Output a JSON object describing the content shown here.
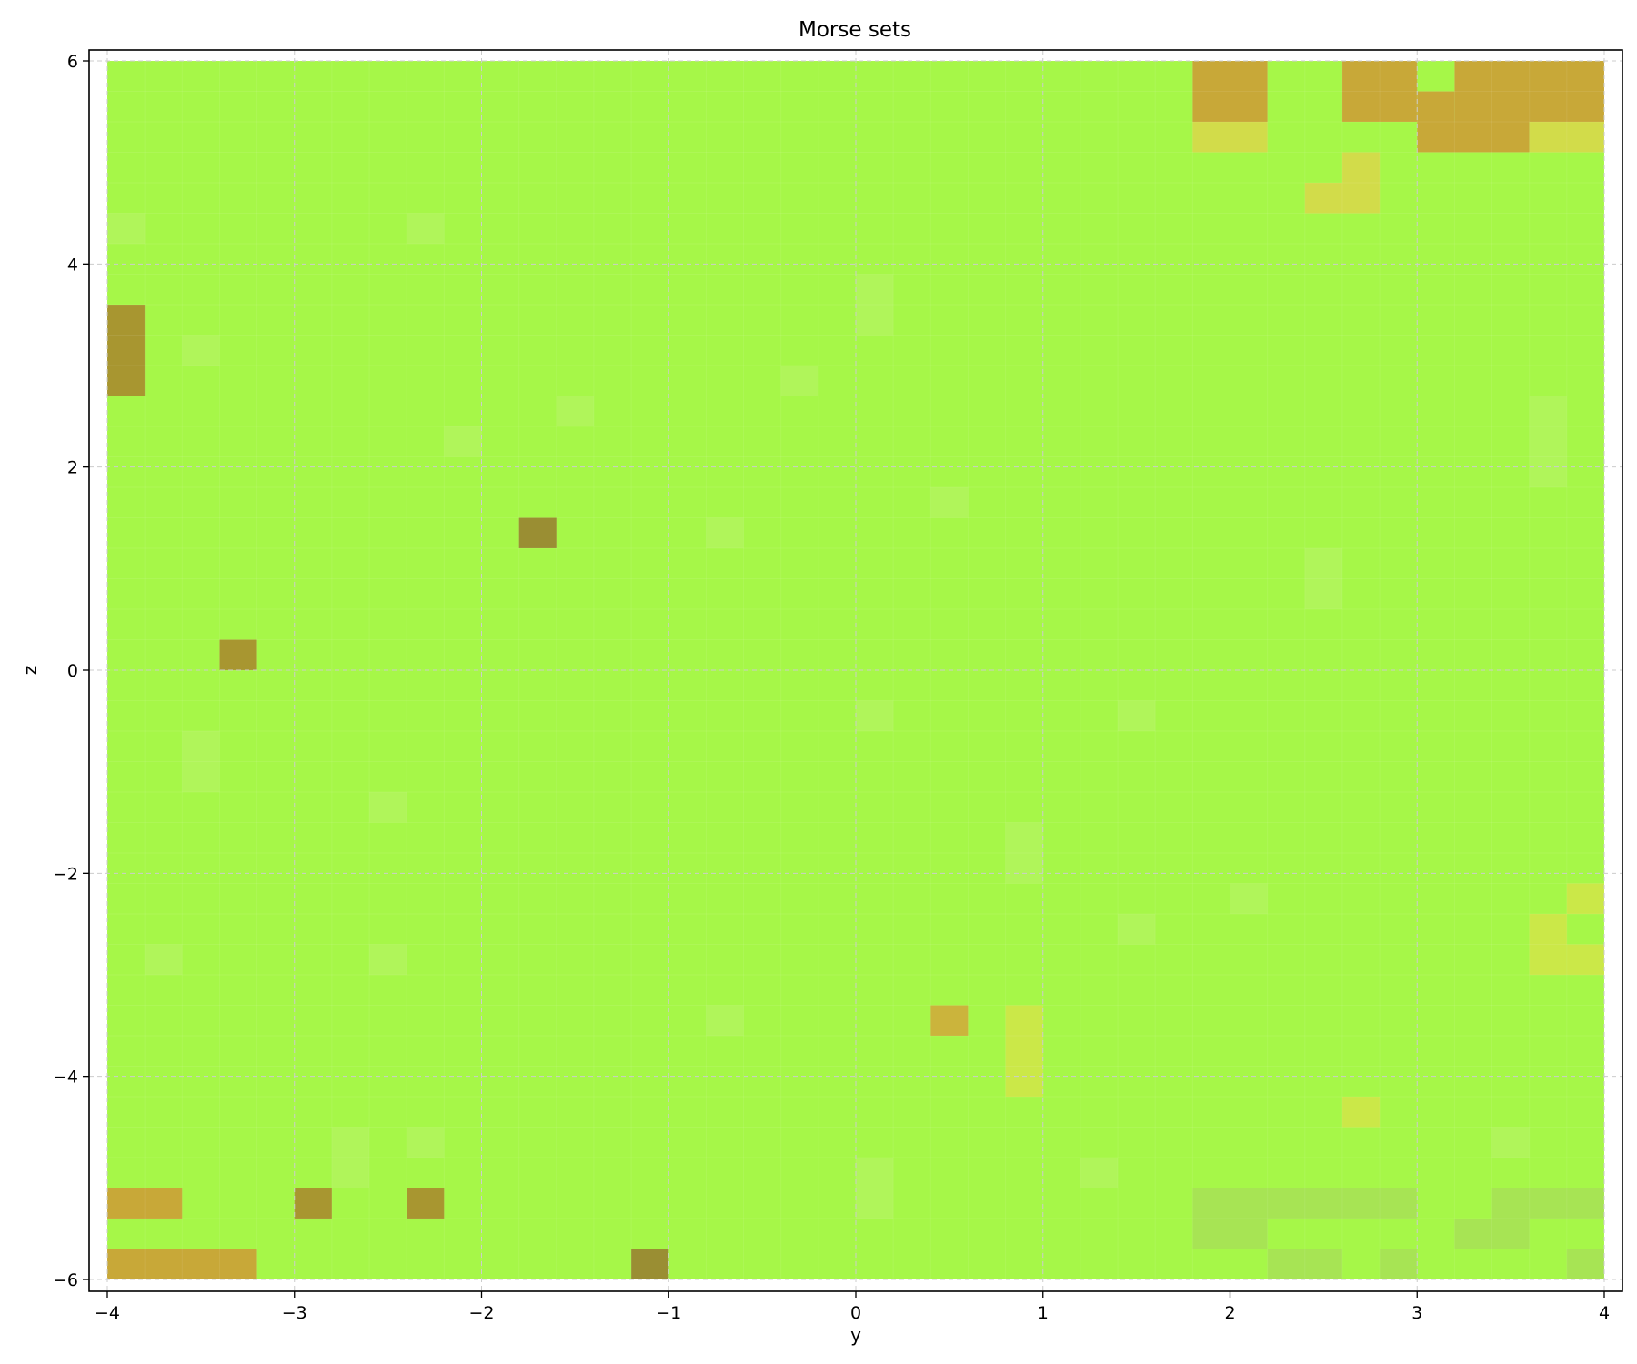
{
  "chart_data": {
    "type": "heatmap",
    "title": "Morse sets",
    "xlabel": "y",
    "ylabel": "z",
    "xlim": [
      -4,
      4
    ],
    "ylim": [
      -6,
      6
    ],
    "grid": true,
    "x_ticks": [
      -4,
      -3,
      -2,
      -1,
      0,
      1,
      2,
      3,
      4
    ],
    "y_ticks": [
      -6,
      -4,
      -2,
      0,
      2,
      4,
      6
    ],
    "x_tick_labels": [
      "−4",
      "−3",
      "−2",
      "−1",
      "0",
      "1",
      "2",
      "3",
      "4"
    ],
    "y_tick_labels": [
      "−6",
      "−4",
      "−2",
      "0",
      "2",
      "4",
      "6"
    ],
    "cell_width": 0.2,
    "cell_height": 0.3,
    "background_color": "#a6f748",
    "colors": {
      "green": "#a6f748",
      "light_green": "#b0f55a",
      "dark_yellow": "#c8a838",
      "mustard": "#cbb43c",
      "olive": "#a89630",
      "dark_olive": "#9a8e33",
      "yellow": "#d2dc4a",
      "yellow_green": "#cbe848",
      "muted_green": "#a7e454"
    },
    "cells": [
      {
        "y": [
          1.8,
          2.2
        ],
        "z": [
          5.4,
          6.0
        ],
        "color": "dark_yellow"
      },
      {
        "y": [
          1.8,
          2.2
        ],
        "z": [
          5.1,
          5.4
        ],
        "color": "yellow"
      },
      {
        "y": [
          2.6,
          3.0
        ],
        "z": [
          5.4,
          6.0
        ],
        "color": "dark_yellow"
      },
      {
        "y": [
          3.2,
          4.0
        ],
        "z": [
          5.4,
          6.0
        ],
        "color": "dark_yellow"
      },
      {
        "y": [
          3.0,
          3.2
        ],
        "z": [
          5.4,
          5.7
        ],
        "color": "dark_yellow"
      },
      {
        "y": [
          3.0,
          3.6
        ],
        "z": [
          5.1,
          5.4
        ],
        "color": "dark_yellow"
      },
      {
        "y": [
          3.6,
          4.0
        ],
        "z": [
          5.1,
          5.4
        ],
        "color": "yellow"
      },
      {
        "y": [
          2.6,
          2.8
        ],
        "z": [
          4.8,
          5.1
        ],
        "color": "yellow"
      },
      {
        "y": [
          2.4,
          2.8
        ],
        "z": [
          4.5,
          4.8
        ],
        "color": "yellow"
      },
      {
        "y": [
          -4.0,
          -3.8
        ],
        "z": [
          2.7,
          3.6
        ],
        "color": "olive"
      },
      {
        "y": [
          -1.8,
          -1.6
        ],
        "z": [
          1.2,
          1.5
        ],
        "color": "dark_olive"
      },
      {
        "y": [
          -3.4,
          -3.2
        ],
        "z": [
          0.0,
          0.3
        ],
        "color": "olive"
      },
      {
        "y": [
          0.4,
          0.6
        ],
        "z": [
          -3.6,
          -3.3
        ],
        "color": "mustard"
      },
      {
        "y": [
          0.8,
          1.0
        ],
        "z": [
          -4.2,
          -3.3
        ],
        "color": "yellow_green"
      },
      {
        "y": [
          3.8,
          4.0
        ],
        "z": [
          -2.4,
          -2.1
        ],
        "color": "yellow_green"
      },
      {
        "y": [
          3.6,
          3.8
        ],
        "z": [
          -3.0,
          -2.4
        ],
        "color": "yellow_green"
      },
      {
        "y": [
          3.8,
          4.0
        ],
        "z": [
          -3.0,
          -2.7
        ],
        "color": "yellow_green"
      },
      {
        "y": [
          2.6,
          2.8
        ],
        "z": [
          -4.5,
          -4.2
        ],
        "color": "yellow_green"
      },
      {
        "y": [
          -4.0,
          -3.6
        ],
        "z": [
          -5.4,
          -5.1
        ],
        "color": "dark_yellow"
      },
      {
        "y": [
          -3.0,
          -2.8
        ],
        "z": [
          -5.4,
          -5.1
        ],
        "color": "olive"
      },
      {
        "y": [
          -2.4,
          -2.2
        ],
        "z": [
          -5.4,
          -5.1
        ],
        "color": "olive"
      },
      {
        "y": [
          -4.0,
          -3.2
        ],
        "z": [
          -6.0,
          -5.7
        ],
        "color": "dark_yellow"
      },
      {
        "y": [
          -1.2,
          -1.0
        ],
        "z": [
          -6.0,
          -5.7
        ],
        "color": "dark_olive"
      },
      {
        "y": [
          1.8,
          3.0
        ],
        "z": [
          -5.4,
          -5.1
        ],
        "color": "muted_green"
      },
      {
        "y": [
          1.8,
          2.2
        ],
        "z": [
          -5.7,
          -5.4
        ],
        "color": "muted_green"
      },
      {
        "y": [
          2.2,
          2.6
        ],
        "z": [
          -6.0,
          -5.7
        ],
        "color": "muted_green"
      },
      {
        "y": [
          2.8,
          3.0
        ],
        "z": [
          -6.0,
          -5.7
        ],
        "color": "muted_green"
      },
      {
        "y": [
          3.4,
          4.0
        ],
        "z": [
          -5.4,
          -5.1
        ],
        "color": "muted_green"
      },
      {
        "y": [
          3.2,
          3.6
        ],
        "z": [
          -5.7,
          -5.4
        ],
        "color": "muted_green"
      },
      {
        "y": [
          3.8,
          4.0
        ],
        "z": [
          -6.0,
          -5.7
        ],
        "color": "muted_green"
      },
      {
        "y": [
          -4.0,
          -3.8
        ],
        "z": [
          4.2,
          4.5
        ],
        "color": "light_green"
      },
      {
        "y": [
          -3.6,
          -3.4
        ],
        "z": [
          3.0,
          3.3
        ],
        "color": "light_green"
      },
      {
        "y": [
          -2.4,
          -2.2
        ],
        "z": [
          4.2,
          4.5
        ],
        "color": "light_green"
      },
      {
        "y": [
          -2.2,
          -2.0
        ],
        "z": [
          2.1,
          2.4
        ],
        "color": "light_green"
      },
      {
        "y": [
          -1.6,
          -1.4
        ],
        "z": [
          2.4,
          2.7
        ],
        "color": "light_green"
      },
      {
        "y": [
          -0.8,
          -0.6
        ],
        "z": [
          1.2,
          1.5
        ],
        "color": "light_green"
      },
      {
        "y": [
          -0.4,
          -0.2
        ],
        "z": [
          2.7,
          3.0
        ],
        "color": "light_green"
      },
      {
        "y": [
          0.0,
          0.2
        ],
        "z": [
          3.3,
          3.9
        ],
        "color": "light_green"
      },
      {
        "y": [
          0.4,
          0.6
        ],
        "z": [
          1.5,
          1.8
        ],
        "color": "light_green"
      },
      {
        "y": [
          -3.6,
          -3.4
        ],
        "z": [
          -1.2,
          -0.6
        ],
        "color": "light_green"
      },
      {
        "y": [
          -2.6,
          -2.4
        ],
        "z": [
          -1.5,
          -1.2
        ],
        "color": "light_green"
      },
      {
        "y": [
          0.0,
          0.2
        ],
        "z": [
          -0.6,
          -0.3
        ],
        "color": "light_green"
      },
      {
        "y": [
          0.8,
          1.0
        ],
        "z": [
          -2.1,
          -1.5
        ],
        "color": "light_green"
      },
      {
        "y": [
          1.4,
          1.6
        ],
        "z": [
          -0.6,
          -0.3
        ],
        "color": "light_green"
      },
      {
        "y": [
          2.4,
          2.6
        ],
        "z": [
          0.6,
          1.2
        ],
        "color": "light_green"
      },
      {
        "y": [
          3.6,
          3.8
        ],
        "z": [
          1.8,
          2.7
        ],
        "color": "light_green"
      },
      {
        "y": [
          2.0,
          2.2
        ],
        "z": [
          -2.4,
          -2.1
        ],
        "color": "light_green"
      },
      {
        "y": [
          1.4,
          1.6
        ],
        "z": [
          -2.7,
          -2.4
        ],
        "color": "light_green"
      },
      {
        "y": [
          -3.8,
          -3.6
        ],
        "z": [
          -3.0,
          -2.7
        ],
        "color": "light_green"
      },
      {
        "y": [
          -2.6,
          -2.4
        ],
        "z": [
          -3.0,
          -2.7
        ],
        "color": "light_green"
      },
      {
        "y": [
          -0.8,
          -0.6
        ],
        "z": [
          -3.6,
          -3.3
        ],
        "color": "light_green"
      },
      {
        "y": [
          -2.8,
          -2.6
        ],
        "z": [
          -5.1,
          -4.5
        ],
        "color": "light_green"
      },
      {
        "y": [
          -2.4,
          -2.2
        ],
        "z": [
          -4.8,
          -4.5
        ],
        "color": "light_green"
      },
      {
        "y": [
          0.0,
          0.2
        ],
        "z": [
          -5.4,
          -4.8
        ],
        "color": "light_green"
      },
      {
        "y": [
          1.2,
          1.4
        ],
        "z": [
          -5.1,
          -4.8
        ],
        "color": "light_green"
      },
      {
        "y": [
          3.4,
          3.6
        ],
        "z": [
          -4.8,
          -4.5
        ],
        "color": "light_green"
      }
    ]
  }
}
